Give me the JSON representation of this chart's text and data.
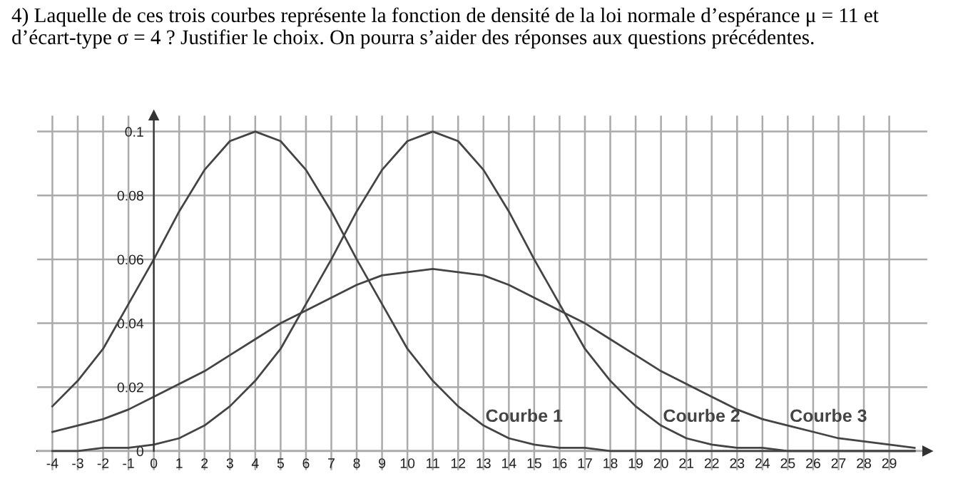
{
  "chart_data": {
    "type": "line",
    "title": "4) Laquelle de ces trois courbes représente la fonction de densité de la loi normale d’espérance μ = 11 et d’écart-type σ = 4 ? Justifier le choix. On pourra s’aider des réponses aux questions précédentes.",
    "x": [
      -4,
      -3,
      -2,
      -1,
      0,
      1,
      2,
      3,
      4,
      5,
      6,
      7,
      8,
      9,
      10,
      11,
      12,
      13,
      14,
      15,
      16,
      17,
      18,
      19,
      20,
      21,
      22,
      23,
      24,
      25,
      26,
      27,
      28,
      29,
      30
    ],
    "series": [
      {
        "name": "Courbe 1",
        "color": "#444444",
        "values": [
          0.014,
          0.022,
          0.032,
          0.046,
          0.06,
          0.075,
          0.088,
          0.097,
          0.1,
          0.097,
          0.088,
          0.075,
          0.06,
          0.046,
          0.032,
          0.022,
          0.014,
          0.008,
          0.004,
          0.002,
          0.001,
          0.001,
          0,
          0,
          0,
          0,
          0,
          0,
          0,
          0,
          0,
          0,
          0,
          0,
          0
        ]
      },
      {
        "name": "Courbe 2",
        "color": "#444444",
        "values": [
          0,
          0,
          0.001,
          0.001,
          0.002,
          0.004,
          0.008,
          0.014,
          0.022,
          0.032,
          0.046,
          0.06,
          0.075,
          0.088,
          0.097,
          0.1,
          0.097,
          0.088,
          0.075,
          0.06,
          0.046,
          0.032,
          0.022,
          0.014,
          0.008,
          0.004,
          0.002,
          0.001,
          0.001,
          0,
          0,
          0,
          0,
          0,
          0
        ]
      },
      {
        "name": "Courbe 3",
        "color": "#444444",
        "values": [
          0.006,
          0.008,
          0.01,
          0.013,
          0.017,
          0.021,
          0.025,
          0.03,
          0.035,
          0.04,
          0.044,
          0.048,
          0.052,
          0.055,
          0.056,
          0.057,
          0.056,
          0.055,
          0.052,
          0.048,
          0.044,
          0.04,
          0.035,
          0.03,
          0.025,
          0.021,
          0.017,
          0.013,
          0.01,
          0.008,
          0.006,
          0.004,
          0.003,
          0.002,
          0.001
        ]
      }
    ],
    "xlim": [
      -4.6,
      30.5
    ],
    "ylim": [
      -0.006,
      0.105
    ],
    "xticks": [
      -4,
      -3,
      -2,
      -1,
      0,
      1,
      2,
      3,
      4,
      5,
      6,
      7,
      8,
      9,
      10,
      11,
      12,
      13,
      14,
      15,
      16,
      17,
      18,
      19,
      20,
      21,
      22,
      23,
      24,
      25,
      26,
      27,
      28,
      29
    ],
    "yticks": [
      0,
      0.02,
      0.04,
      0.06,
      0.08,
      0.1
    ],
    "grid": true,
    "marker": "none",
    "line_style": "solid"
  }
}
